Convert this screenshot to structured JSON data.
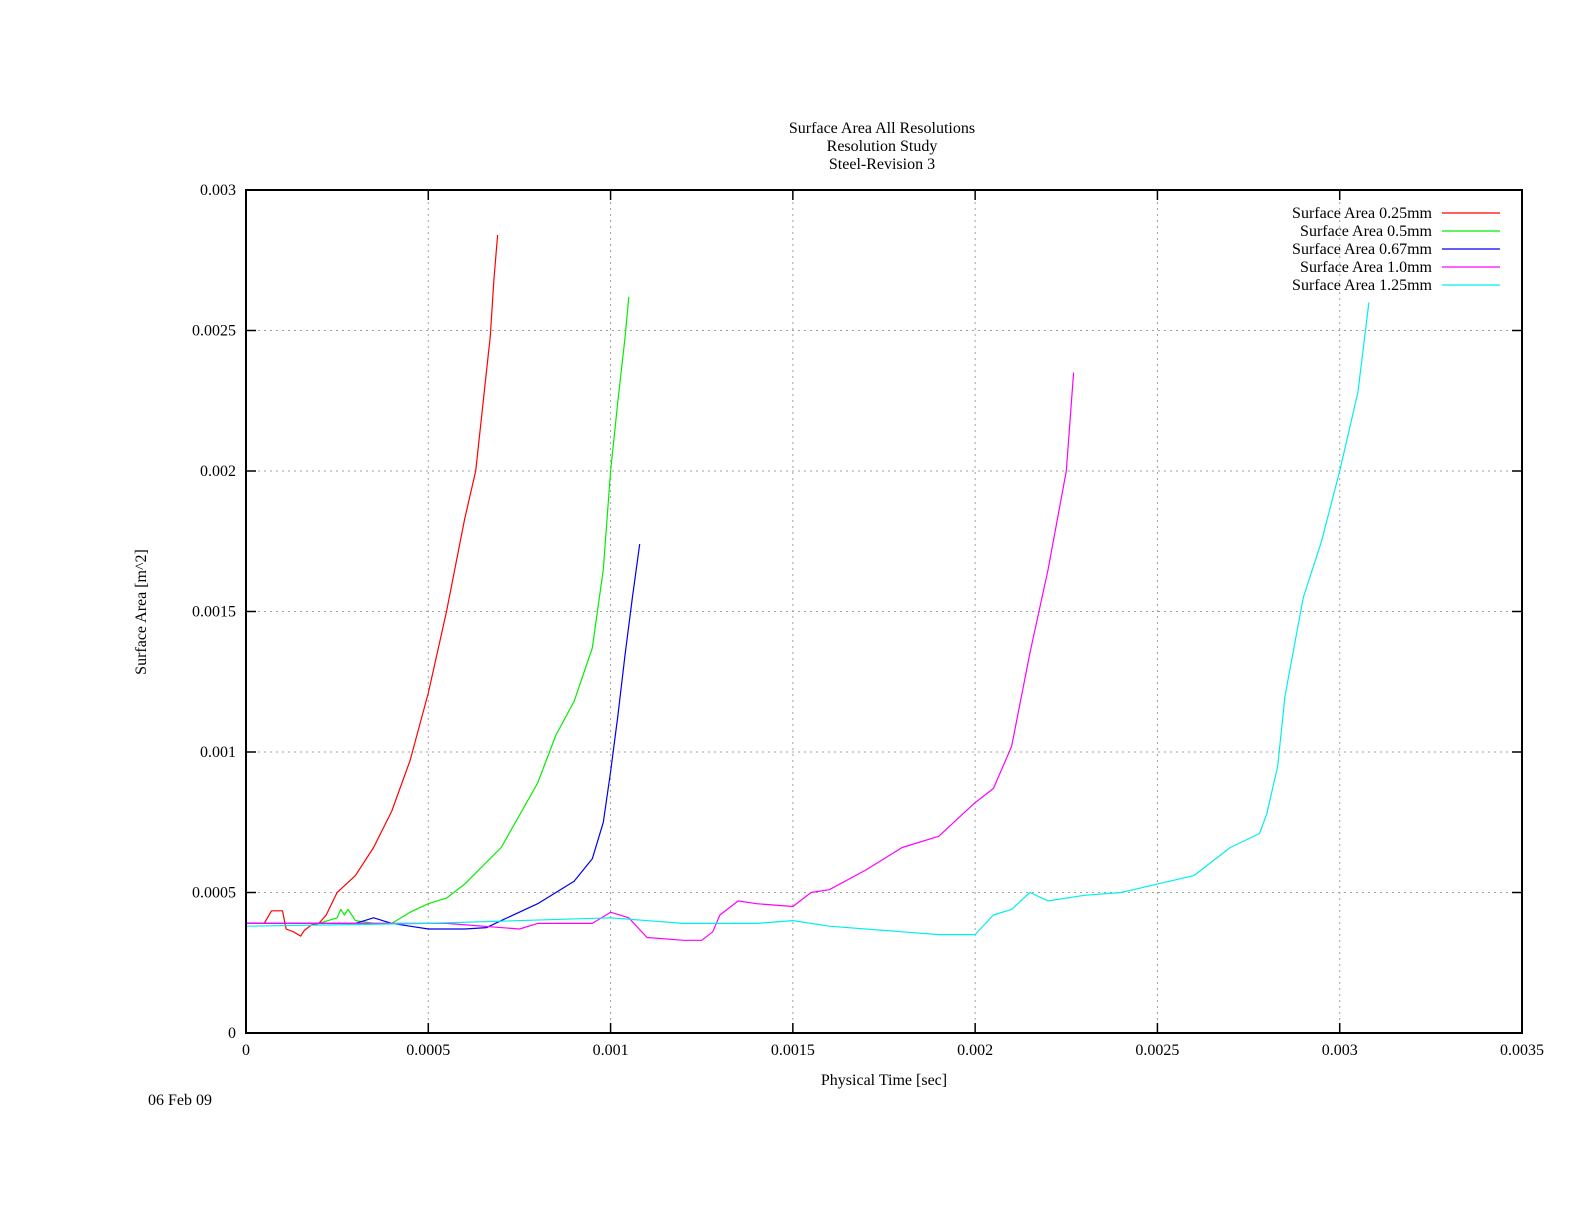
{
  "chart_data": {
    "type": "line",
    "title": [
      "Surface Area All Resolutions",
      "Resolution Study",
      "Steel-Revision 3"
    ],
    "xlabel": "Physical Time [sec]",
    "ylabel": "Surface Area [m^2]",
    "xlabel_color": "#00ee00",
    "ylabel_color": "#ff0000",
    "xlim": [
      0,
      0.0035
    ],
    "ylim": [
      0,
      0.003
    ],
    "xticks": [
      0,
      0.0005,
      0.001,
      0.0015,
      0.002,
      0.0025,
      0.003,
      0.0035
    ],
    "xtick_labels": [
      "0",
      "0.0005",
      "0.001",
      "0.0015",
      "0.002",
      "0.0025",
      "0.003",
      "0.0035"
    ],
    "yticks": [
      0,
      0.0005,
      0.001,
      0.0015,
      0.002,
      0.0025,
      0.003
    ],
    "ytick_labels": [
      "0",
      "0.0005",
      "0.001",
      "0.0015",
      "0.002",
      "0.0025",
      "0.003"
    ],
    "grid": true,
    "legend_position": "top-right",
    "date_stamp": "06 Feb 09",
    "series": [
      {
        "name": "Surface Area 0.25mm",
        "color": "#ff0000",
        "x": [
          0,
          5e-05,
          7e-05,
          0.0001,
          0.00011,
          0.00013,
          0.00015,
          0.00016,
          0.00018,
          0.0002,
          0.00022,
          0.00025,
          0.0003,
          0.00035,
          0.0004,
          0.00045,
          0.0005,
          0.00055,
          0.0006,
          0.00063,
          0.00065,
          0.00067,
          0.00068,
          0.00069
        ],
        "y": [
          0.00039,
          0.00039,
          0.000435,
          0.000435,
          0.00037,
          0.00036,
          0.000345,
          0.000365,
          0.000385,
          0.00039,
          0.00042,
          0.0005,
          0.00056,
          0.00066,
          0.00079,
          0.00097,
          0.00121,
          0.0015,
          0.00183,
          0.002,
          0.00224,
          0.00248,
          0.00268,
          0.00284
        ]
      },
      {
        "name": "Surface Area 0.5mm",
        "color": "#00ee00",
        "x": [
          0,
          0.0002,
          0.00025,
          0.00026,
          0.00027,
          0.00028,
          0.0003,
          0.00035,
          0.0004,
          0.00045,
          0.0005,
          0.00055,
          0.0006,
          0.0007,
          0.0008,
          0.00085,
          0.0009,
          0.00095,
          0.00098,
          0.001,
          0.00102,
          0.00104,
          0.00105
        ],
        "y": [
          0.00039,
          0.00039,
          0.00041,
          0.00044,
          0.00042,
          0.00044,
          0.0004,
          0.00039,
          0.00039,
          0.00043,
          0.00046,
          0.00048,
          0.00053,
          0.00066,
          0.00089,
          0.00106,
          0.00118,
          0.00137,
          0.00165,
          0.002,
          0.00225,
          0.00248,
          0.00262
        ]
      },
      {
        "name": "Surface Area 0.67mm",
        "color": "#0000ee",
        "x": [
          0,
          0.0003,
          0.00035,
          0.0004,
          0.00045,
          0.0005,
          0.0006,
          0.00066,
          0.0007,
          0.0008,
          0.0009,
          0.00095,
          0.00098,
          0.001,
          0.00102,
          0.00104,
          0.00106,
          0.00108
        ],
        "y": [
          0.00039,
          0.00039,
          0.00041,
          0.00039,
          0.00038,
          0.00037,
          0.00037,
          0.000375,
          0.0004,
          0.00046,
          0.00054,
          0.00062,
          0.00075,
          0.00093,
          0.00113,
          0.00135,
          0.00155,
          0.00174
        ]
      },
      {
        "name": "Surface Area 1.0mm",
        "color": "#ff00ff",
        "x": [
          0,
          0.00055,
          0.00075,
          0.0008,
          0.00095,
          0.001,
          0.00105,
          0.0011,
          0.0012,
          0.00125,
          0.00128,
          0.0013,
          0.00135,
          0.0014,
          0.0015,
          0.00155,
          0.0016,
          0.0017,
          0.0018,
          0.0019,
          0.002,
          0.00205,
          0.0021,
          0.00215,
          0.0022,
          0.00225,
          0.00227
        ],
        "y": [
          0.00039,
          0.00039,
          0.00037,
          0.00039,
          0.00039,
          0.00043,
          0.00041,
          0.00034,
          0.00033,
          0.00033,
          0.00036,
          0.00042,
          0.00047,
          0.00046,
          0.00045,
          0.0005,
          0.00051,
          0.00058,
          0.00066,
          0.0007,
          0.00082,
          0.00087,
          0.00102,
          0.00135,
          0.00165,
          0.002,
          0.00235
        ]
      },
      {
        "name": "Surface Area 1.25mm",
        "color": "#00eeee",
        "x": [
          0,
          0.0005,
          0.001,
          0.0012,
          0.0014,
          0.0015,
          0.0016,
          0.0018,
          0.0019,
          0.002,
          0.00205,
          0.0021,
          0.00215,
          0.0022,
          0.0023,
          0.0024,
          0.0025,
          0.0026,
          0.0027,
          0.00278,
          0.0028,
          0.00283,
          0.00285,
          0.0029,
          0.00295,
          0.003,
          0.00305,
          0.00308
        ],
        "y": [
          0.00038,
          0.00039,
          0.00041,
          0.00039,
          0.00039,
          0.0004,
          0.00038,
          0.00036,
          0.00035,
          0.00035,
          0.00042,
          0.00044,
          0.0005,
          0.00047,
          0.00049,
          0.0005,
          0.00053,
          0.00056,
          0.00066,
          0.00071,
          0.00078,
          0.00095,
          0.0012,
          0.00155,
          0.00175,
          0.002,
          0.00228,
          0.0026
        ]
      }
    ]
  }
}
